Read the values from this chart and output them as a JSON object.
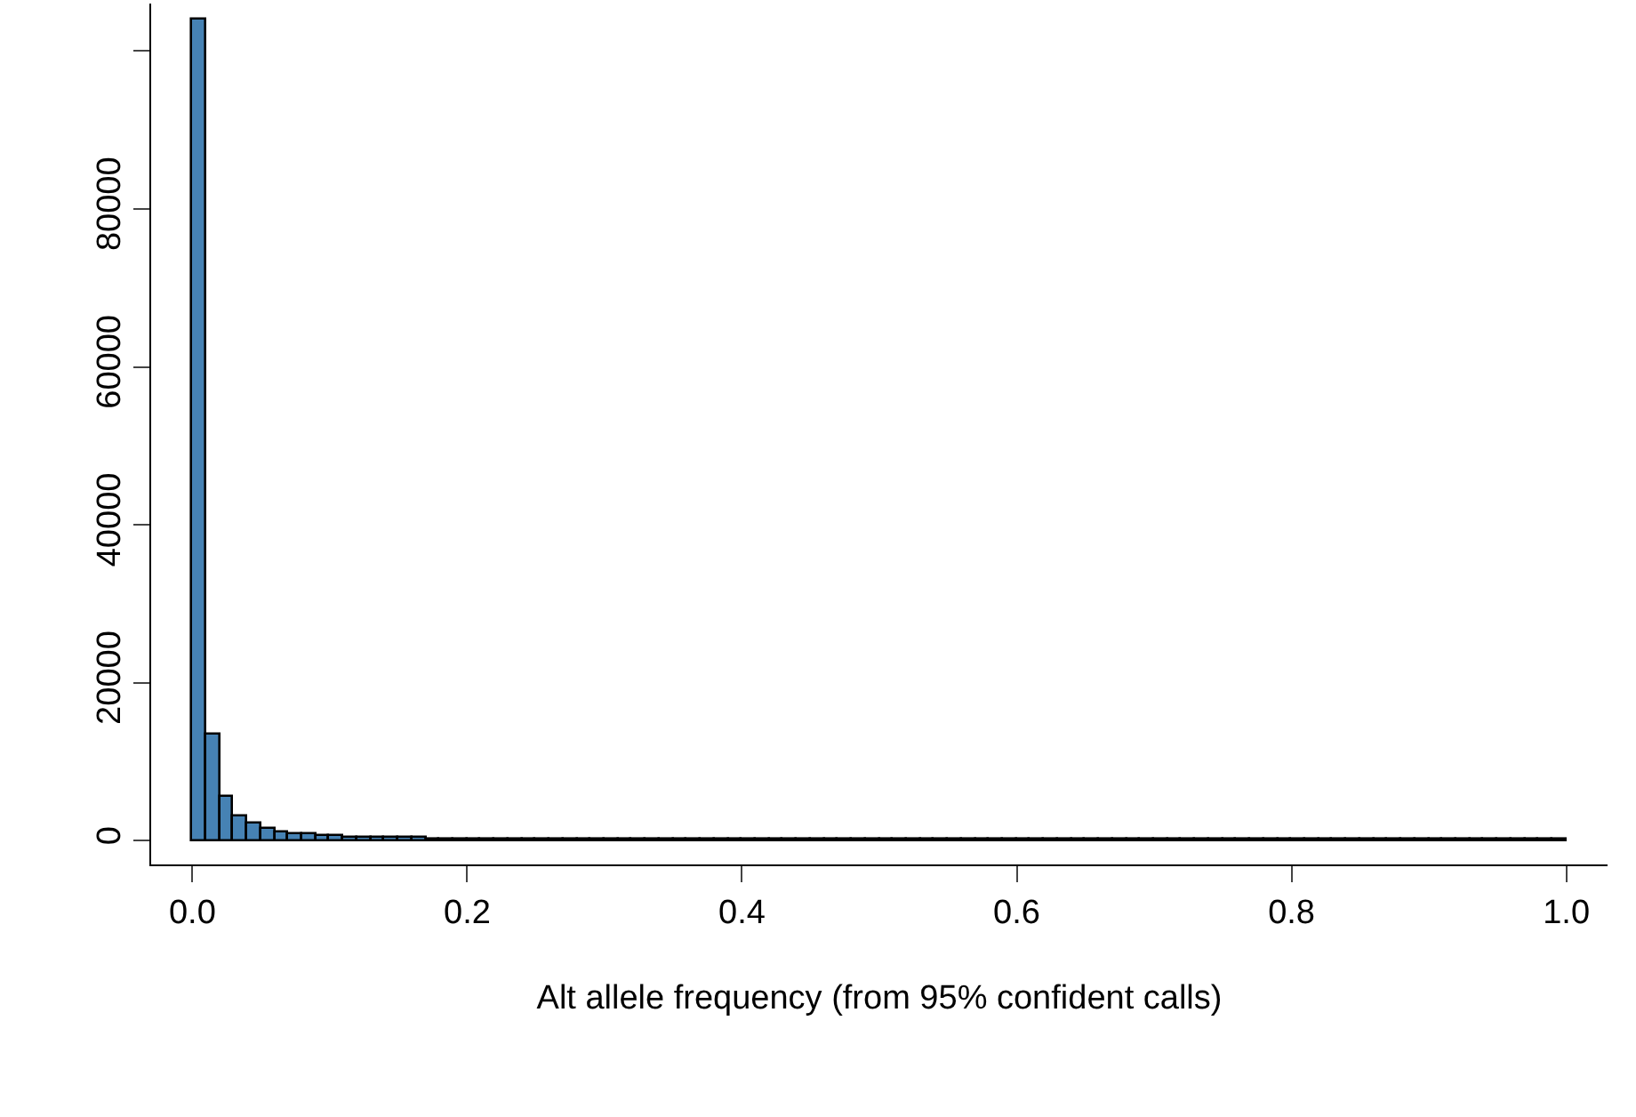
{
  "chart_data": {
    "type": "histogram",
    "xlabel": "Alt allele frequency (from 95% confident calls)",
    "bins": [
      0,
      0.01,
      0.02,
      0.03,
      0.04,
      0.05,
      0.06,
      0.07,
      0.08,
      0.09,
      0.1,
      0.11,
      0.12,
      0.13,
      0.14,
      0.15,
      0.16,
      0.17,
      0.18,
      0.19,
      0.2,
      0.21,
      0.22,
      0.23,
      0.24,
      0.25,
      0.26,
      0.27,
      0.28,
      0.29,
      0.3,
      0.31,
      0.32,
      0.33,
      0.34,
      0.35,
      0.36,
      0.37,
      0.38,
      0.39,
      0.4,
      0.41,
      0.42,
      0.43,
      0.44,
      0.45,
      0.46,
      0.47,
      0.48,
      0.49,
      0.5,
      0.51,
      0.52,
      0.53,
      0.54,
      0.55,
      0.56,
      0.57,
      0.58,
      0.59,
      0.6,
      0.61,
      0.62,
      0.63,
      0.64,
      0.65,
      0.66,
      0.67,
      0.68,
      0.69,
      0.7,
      0.71,
      0.72,
      0.73,
      0.74,
      0.75,
      0.76,
      0.77,
      0.78,
      0.79,
      0.8,
      0.81,
      0.82,
      0.83,
      0.84,
      0.85,
      0.86,
      0.87,
      0.88,
      0.89,
      0.9,
      0.91,
      0.92,
      0.93,
      0.94,
      0.95,
      0.96,
      0.97,
      0.98,
      0.99,
      1
    ],
    "values": [
      104000,
      13400,
      5500,
      3000,
      2100,
      1450,
      1000,
      830,
      750,
      600,
      500,
      480,
      400,
      350,
      330,
      300,
      280,
      260,
      240,
      230,
      220,
      200,
      200,
      190,
      180,
      170,
      170,
      160,
      150,
      150,
      140,
      140,
      130,
      130,
      120,
      120,
      120,
      110,
      110,
      110,
      100,
      100,
      100,
      100,
      90,
      90,
      90,
      90,
      90,
      80,
      80,
      80,
      80,
      80,
      80,
      80,
      70,
      70,
      70,
      70,
      70,
      70,
      70,
      70,
      60,
      60,
      60,
      60,
      60,
      60,
      60,
      60,
      60,
      60,
      50,
      50,
      50,
      50,
      50,
      50,
      50,
      50,
      50,
      50,
      50,
      50,
      50,
      50,
      50,
      50,
      50,
      50,
      50,
      60,
      60,
      60,
      60,
      60,
      60,
      60
    ],
    "color": "#4682b4",
    "xlim": [
      -0.03,
      1.03
    ],
    "xticks": [
      {
        "value": 0,
        "label": "0.0"
      },
      {
        "value": 0.2,
        "label": "0.2"
      },
      {
        "value": 0.4,
        "label": "0.4"
      },
      {
        "value": 0.6,
        "label": "0.6"
      },
      {
        "value": 0.8,
        "label": "0.8"
      },
      {
        "value": 1,
        "label": "1.0"
      }
    ],
    "ylim": [
      -3000,
      106000
    ],
    "yticks": [
      0,
      20000,
      40000,
      60000,
      80000,
      {
        "value": 100000,
        "label": null
      }
    ],
    "grid": false,
    "legend": false
  }
}
